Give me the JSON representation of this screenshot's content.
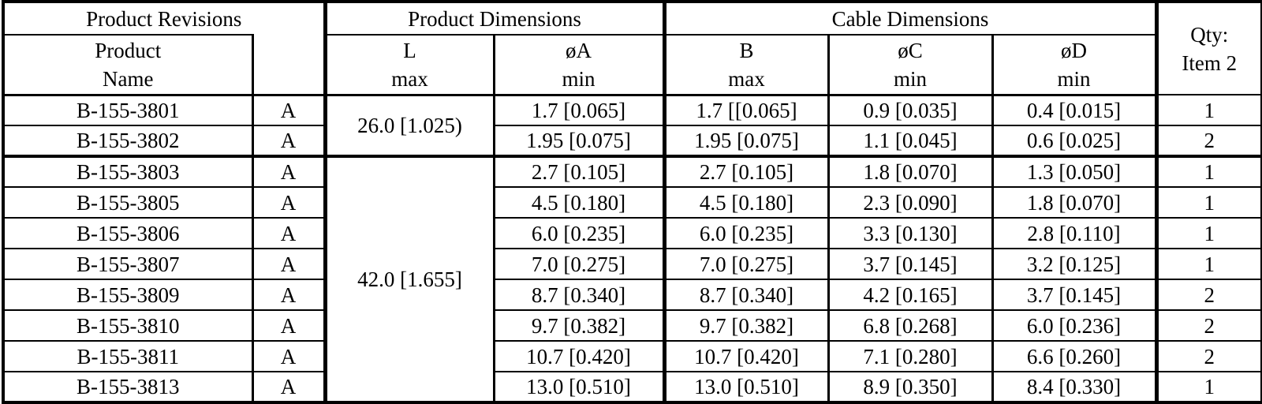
{
  "table": {
    "section_headers": {
      "product_revisions": "Product Revisions",
      "product_dimensions": "Product Dimensions",
      "cable_dimensions": "Cable Dimensions",
      "qty_line1": "Qty:",
      "qty_line2": "Item 2"
    },
    "column_headers": {
      "product": {
        "line1": "Product",
        "line2": "Name"
      },
      "revision": {
        "line1": "",
        "line2": ""
      },
      "l": {
        "line1": "L",
        "line2": "max"
      },
      "oa": {
        "line1": "øA",
        "line2": "min"
      },
      "b": {
        "line1": "B",
        "line2": "max"
      },
      "oc": {
        "line1": "øC",
        "line2": "min"
      },
      "od": {
        "line1": "øD",
        "line2": "min"
      }
    },
    "l_groups": [
      {
        "value": "26.0 [1.025)",
        "rows": 2
      },
      {
        "value": "42.0 [1.655]",
        "rows": 8
      }
    ],
    "rows": [
      {
        "name": "B-155-3801",
        "rev": "A",
        "oa": "1.7 [0.065]",
        "b": "1.7 [[0.065]",
        "oc": "0.9 [0.035]",
        "od": "0.4 [0.015]",
        "qty": "1"
      },
      {
        "name": "B-155-3802",
        "rev": "A",
        "oa": "1.95 [0.075]",
        "b": "1.95 [0.075]",
        "oc": "1.1 [0.045]",
        "od": "0.6 [0.025]",
        "qty": "2"
      },
      {
        "name": "B-155-3803",
        "rev": "A",
        "oa": "2.7 [0.105]",
        "b": "2.7 [0.105]",
        "oc": "1.8 [0.070]",
        "od": "1.3 [0.050]",
        "qty": "1"
      },
      {
        "name": "B-155-3805",
        "rev": "A",
        "oa": "4.5 [0.180]",
        "b": "4.5 [0.180]",
        "oc": "2.3 [0.090]",
        "od": "1.8 [0.070]",
        "qty": "1"
      },
      {
        "name": "B-155-3806",
        "rev": "A",
        "oa": "6.0 [0.235]",
        "b": "6.0 [0.235]",
        "oc": "3.3 [0.130]",
        "od": "2.8 [0.110]",
        "qty": "1"
      },
      {
        "name": "B-155-3807",
        "rev": "A",
        "oa": "7.0 [0.275]",
        "b": "7.0 [0.275]",
        "oc": "3.7 [0.145]",
        "od": "3.2 [0.125]",
        "qty": "1"
      },
      {
        "name": "B-155-3809",
        "rev": "A",
        "oa": "8.7 [0.340]",
        "b": "8.7 [0.340]",
        "oc": "4.2 [0.165]",
        "od": "3.7 [0.145]",
        "qty": "2"
      },
      {
        "name": "B-155-3810",
        "rev": "A",
        "oa": "9.7 [0.382]",
        "b": "9.7 [0.382]",
        "oc": "6.8 [0.268]",
        "od": "6.0 [0.236]",
        "qty": "2"
      },
      {
        "name": "B-155-3811",
        "rev": "A",
        "oa": "10.7 [0.420]",
        "b": "10.7 [0.420]",
        "oc": "7.1 [0.280]",
        "od": "6.6 [0.260]",
        "qty": "2"
      },
      {
        "name": "B-155-3813",
        "rev": "A",
        "oa": "13.0 [0.510]",
        "b": "13.0 [0.510]",
        "oc": "8.9 [0.350]",
        "od": "8.4 [0.330]",
        "qty": "1"
      }
    ]
  }
}
